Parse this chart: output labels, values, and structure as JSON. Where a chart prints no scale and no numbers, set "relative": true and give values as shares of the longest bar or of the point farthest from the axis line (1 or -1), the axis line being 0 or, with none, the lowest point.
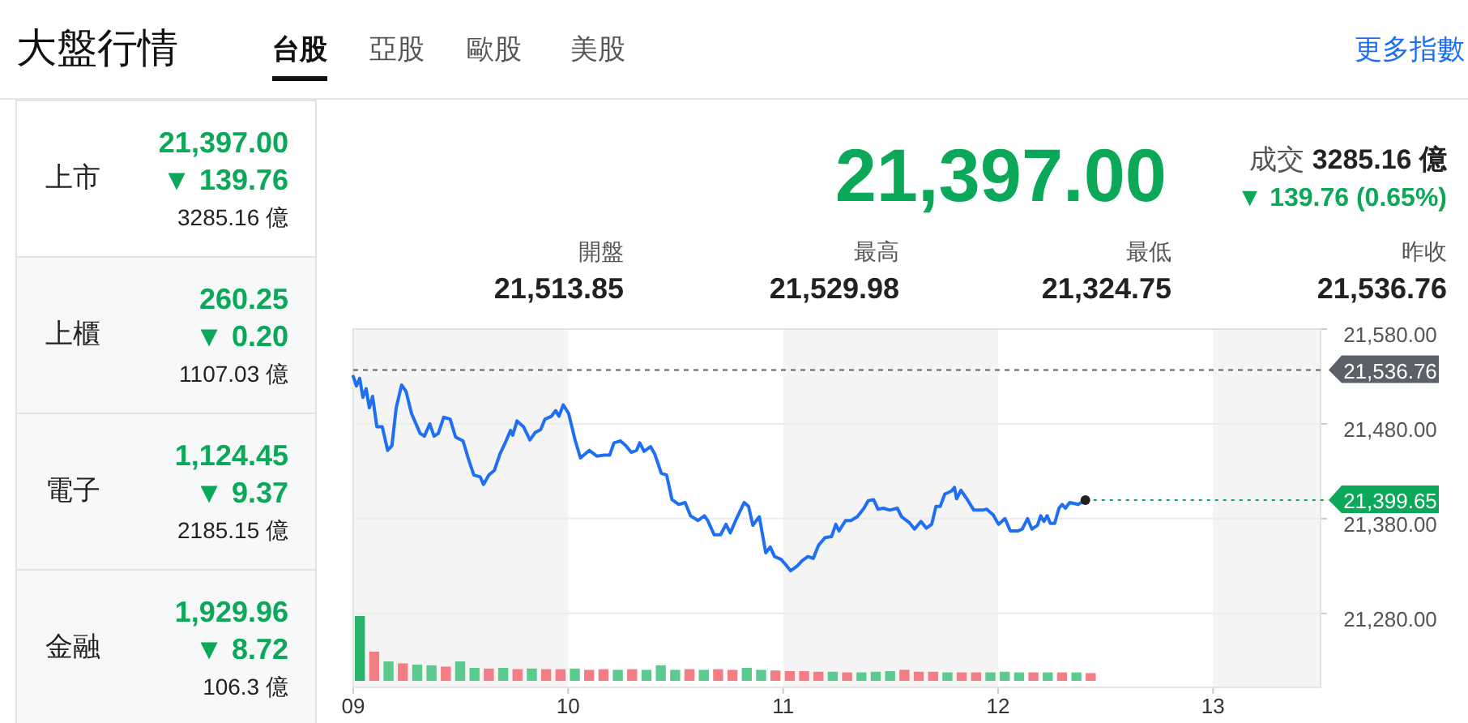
{
  "chart_data": [
    {
      "type": "other",
      "title": "大盤行情",
      "annotations": [
        "台股",
        "亞股",
        "歐股",
        "美股",
        "更多指數"
      ]
    },
    {
      "type": "other",
      "annotations": [
        "上市",
        "21,397.00",
        "▼ 139.76",
        "3285.16 億",
        "上櫃",
        "260.25",
        "▼ 0.20",
        "1107.03 億",
        "電子",
        "1,124.45",
        "▼ 9.37",
        "2185.15 億",
        "金融",
        "1,929.96",
        "▼ 8.72",
        "106.3 億"
      ]
    },
    {
      "type": "other",
      "title": "21,397.00",
      "annotations": [
        "成交",
        "3285.16 億",
        "▼ 139.76 (0.65%)",
        "開盤",
        "21,513.85",
        "最高",
        "21,529.98",
        "最低",
        "21,324.75",
        "昨收",
        "21,536.76"
      ]
    },
    {
      "type": "line",
      "xlim": [
        9,
        13.5
      ],
      "xticks": [
        {
          "value": 9,
          "label": "09"
        },
        {
          "value": 10,
          "label": "10"
        },
        {
          "value": 11,
          "label": "11"
        },
        {
          "value": 12,
          "label": "12"
        },
        {
          "value": 13,
          "label": "13"
        }
      ],
      "ylim": [
        21202,
        21580
      ],
      "yticks": [
        {
          "value": 21580,
          "label": "21,580.00"
        },
        {
          "value": 21480,
          "label": "21,480.00"
        },
        {
          "value": 21380,
          "label": "21,380.00"
        },
        {
          "value": 21280,
          "label": "21,280.00"
        }
      ],
      "grid": "y",
      "bands": [
        {
          "axis": "x",
          "from": 9,
          "to": 10,
          "color": "#f4f4f4"
        },
        {
          "axis": "x",
          "from": 11,
          "to": 12,
          "color": "#f4f4f4"
        },
        {
          "axis": "x",
          "from": 13,
          "to": 13.5,
          "color": "#f4f4f4"
        }
      ],
      "ref_lines": [
        {
          "axis": "y",
          "value": 21536.76,
          "label": "21,536.76",
          "color": "#5b6167",
          "line_style": "dotted"
        }
      ],
      "annotations": [
        {
          "text": "21,399.65",
          "x": 12.406,
          "y": 21399.65
        }
      ],
      "x": [
        9.0,
        9.015,
        9.03,
        9.045,
        9.06,
        9.075,
        9.09,
        9.11,
        9.135,
        9.16,
        9.18,
        9.2,
        9.225,
        9.246,
        9.271,
        9.311,
        9.331,
        9.356,
        9.376,
        9.396,
        9.421,
        9.451,
        9.476,
        9.511,
        9.536,
        9.561,
        9.591,
        9.606,
        9.631,
        9.657,
        9.682,
        9.707,
        9.732,
        9.742,
        9.762,
        9.792,
        9.822,
        9.847,
        9.872,
        9.892,
        9.922,
        9.942,
        9.957,
        9.977,
        10.002,
        10.032,
        10.057,
        10.098,
        10.133,
        10.168,
        10.193,
        10.213,
        10.243,
        10.268,
        10.293,
        10.318,
        10.333,
        10.353,
        10.383,
        10.403,
        10.433,
        10.458,
        10.483,
        10.514,
        10.544,
        10.569,
        10.604,
        10.634,
        10.649,
        10.679,
        10.709,
        10.734,
        10.754,
        10.779,
        10.804,
        10.819,
        10.839,
        10.859,
        10.889,
        10.919,
        10.94,
        10.96,
        10.99,
        11.01,
        11.035,
        11.065,
        11.09,
        11.115,
        11.14,
        11.165,
        11.195,
        11.225,
        11.245,
        11.26,
        11.29,
        11.315,
        11.345,
        11.376,
        11.396,
        11.421,
        11.441,
        11.466,
        11.496,
        11.531,
        11.551,
        11.586,
        11.611,
        11.641,
        11.666,
        11.691,
        11.711,
        11.731,
        11.752,
        11.782,
        11.797,
        11.807,
        11.827,
        11.857,
        11.887,
        11.927,
        11.947,
        11.977,
        12.002,
        12.032,
        12.057,
        12.092,
        12.112,
        12.137,
        12.157,
        12.183,
        12.198,
        12.213,
        12.228,
        12.243,
        12.263,
        12.283,
        12.298,
        12.313,
        12.333,
        12.373,
        12.406
      ],
      "series": [
        {
          "color": "#1f6ff2",
          "values": [
            21530,
            21520,
            21528,
            21508,
            21517,
            21497,
            21509,
            21477,
            21477,
            21452,
            21457,
            21497,
            21521,
            21514,
            21491,
            21470,
            21467,
            21480,
            21467,
            21470,
            21487,
            21485,
            21466,
            21462,
            21443,
            21426,
            21424,
            21416,
            21426,
            21431,
            21448,
            21460,
            21473,
            21468,
            21483,
            21477,
            21463,
            21471,
            21474,
            21485,
            21488,
            21494,
            21488,
            21500,
            21491,
            21463,
            21444,
            21452,
            21446,
            21447,
            21447,
            21460,
            21462,
            21457,
            21450,
            21452,
            21460,
            21451,
            21456,
            21448,
            21428,
            21426,
            21400,
            21395,
            21397,
            21383,
            21378,
            21383,
            21378,
            21363,
            21363,
            21374,
            21365,
            21378,
            21390,
            21397,
            21393,
            21373,
            21382,
            21344,
            21350,
            21340,
            21337,
            21332,
            21325,
            21330,
            21336,
            21340,
            21338,
            21352,
            21360,
            21361,
            21374,
            21367,
            21378,
            21378,
            21382,
            21391,
            21399,
            21400,
            21390,
            21391,
            21389,
            21391,
            21382,
            21376,
            21369,
            21377,
            21370,
            21374,
            21393,
            21393,
            21406,
            21409,
            21413,
            21401,
            21410,
            21400,
            21389,
            21389,
            21390,
            21384,
            21374,
            21380,
            21367,
            21367,
            21369,
            21380,
            21369,
            21373,
            21383,
            21377,
            21383,
            21375,
            21375,
            21391,
            21395,
            21391,
            21397,
            21395,
            21400
          ]
        }
      ]
    },
    {
      "type": "bar",
      "relative": true,
      "categories": [
        null,
        null,
        null,
        null,
        null,
        null,
        null,
        null,
        null,
        null,
        null,
        null,
        null,
        null,
        null,
        null,
        null,
        null,
        null,
        null,
        null,
        null,
        null,
        null,
        null,
        null,
        null,
        null,
        null,
        null,
        null,
        null,
        null,
        null,
        null,
        null,
        null,
        null,
        null,
        null,
        null,
        null,
        null,
        null,
        null,
        null,
        null,
        null,
        null,
        null,
        null,
        null
      ],
      "values": [
        1,
        0.45,
        0.3,
        0.27,
        0.25,
        0.24,
        0.22,
        0.3,
        0.2,
        0.19,
        0.2,
        0.18,
        0.19,
        0.18,
        0.18,
        0.19,
        0.17,
        0.18,
        0.17,
        0.18,
        0.17,
        0.24,
        0.17,
        0.18,
        0.17,
        0.18,
        0.17,
        0.2,
        0.17,
        0.16,
        0.15,
        0.15,
        0.14,
        0.14,
        0.13,
        0.13,
        0.14,
        0.15,
        0.17,
        0.14,
        0.14,
        0.13,
        0.13,
        0.13,
        0.13,
        0.14,
        0.13,
        0.13,
        0.13,
        0.13,
        0.13,
        0.12
      ],
      "colors": [
        "#29b36a",
        "#f37d84",
        "#5cc98f",
        "#f37d84",
        "#5cc98f",
        "#5cc98f",
        "#f37d84",
        "#5cc98f",
        "#5cc98f",
        "#f37d84",
        "#5cc98f",
        "#f37d84",
        "#5cc98f",
        "#f37d84",
        "#f37d84",
        "#5cc98f",
        "#f37d84",
        "#f37d84",
        "#5cc98f",
        "#f37d84",
        "#5cc98f",
        "#5cc98f",
        "#5cc98f",
        "#f37d84",
        "#5cc98f",
        "#f37d84",
        "#f37d84",
        "#5cc98f",
        "#5cc98f",
        "#f37d84",
        "#f37d84",
        "#f37d84",
        "#f37d84",
        "#5cc98f",
        "#f37d84",
        "#5cc98f",
        "#5cc98f",
        "#5cc98f",
        "#f37d84",
        "#f37d84",
        "#f37d84",
        "#5cc98f",
        "#f37d84",
        "#f37d84",
        "#5cc98f",
        "#5cc98f",
        "#5cc98f",
        "#f37d84",
        "#5cc98f",
        "#f37d84",
        "#5cc98f",
        "#f37d84"
      ]
    }
  ]
}
